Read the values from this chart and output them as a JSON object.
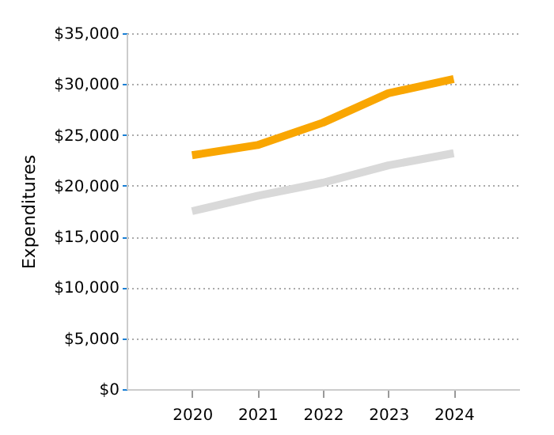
{
  "chart_data": {
    "type": "line",
    "ylabel": "Expenditures",
    "categories": [
      "2020",
      "2021",
      "2022",
      "2023",
      "2024"
    ],
    "series": [
      {
        "color": "#f9a602",
        "values": [
          23000,
          24000,
          26200,
          29100,
          30500
        ]
      },
      {
        "color": "#d9d9d9",
        "values": [
          17500,
          19000,
          20300,
          22000,
          23200
        ]
      }
    ],
    "ylim": [
      0,
      35000
    ],
    "yticks": [
      {
        "value": 0,
        "label": "$0"
      },
      {
        "value": 5000,
        "label": "$5,000"
      },
      {
        "value": 10000,
        "label": "$10,000"
      },
      {
        "value": 15000,
        "label": "$15,000"
      },
      {
        "value": 20000,
        "label": "$20,000"
      },
      {
        "value": 25000,
        "label": "$25,000"
      },
      {
        "value": 30000,
        "label": "$30,000"
      },
      {
        "value": 35000,
        "label": "$35,000"
      }
    ],
    "grid": "y",
    "legend": false,
    "marker": "none"
  }
}
